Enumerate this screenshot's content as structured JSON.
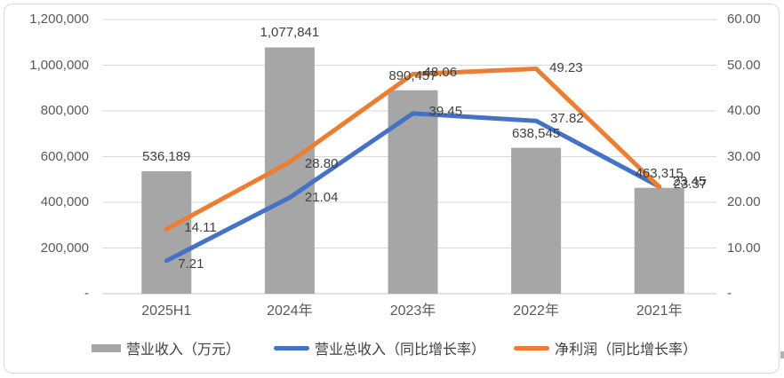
{
  "colors": {
    "bar": "#a6a6a6",
    "blue_line": "#4472c4",
    "orange_line": "#ed7d31",
    "gridline": "#d9d9d9",
    "axis_line": "#c8c8c8",
    "axis_text": "#595959",
    "label_text": "#404040",
    "frame_border": "#d9d9d9"
  },
  "chart_data": {
    "type": "bar",
    "subtype": "combo-bar-line",
    "categories": [
      "2025H1",
      "2024年",
      "2023年",
      "2022年",
      "2021年"
    ],
    "series": [
      {
        "name": "营业收入（万元）",
        "type": "bar",
        "axis": "left",
        "color": "#a6a6a6",
        "values": [
          536189,
          1077841,
          890457,
          638545,
          463315
        ],
        "labels": [
          "536,189",
          "1,077,841",
          "890,457",
          "638,545",
          "463,315"
        ]
      },
      {
        "name": "营业总收入（同比增长率）",
        "type": "line",
        "axis": "right",
        "color": "#4472c4",
        "values": [
          7.21,
          21.04,
          39.45,
          37.82,
          23.45
        ],
        "labels": [
          "7.21",
          "21.04",
          "39.45",
          "37.82",
          "23.45"
        ]
      },
      {
        "name": "净利润（同比增长率）",
        "type": "line",
        "axis": "right",
        "color": "#ed7d31",
        "values": [
          14.11,
          28.8,
          48.06,
          49.23,
          23.37
        ],
        "labels": [
          "14.11",
          "28.80",
          "48.06",
          "49.23",
          "23.37"
        ]
      }
    ],
    "left_axis": {
      "min": 0,
      "max": 1200000,
      "step": 200000,
      "ticks": [
        "1,200,000",
        "1,000,000",
        "800,000",
        "600,000",
        "400,000",
        "200,000",
        "-"
      ]
    },
    "right_axis": {
      "min": 0,
      "max": 60,
      "step": 10,
      "ticks": [
        "60.00",
        "50.00",
        "40.00",
        "30.00",
        "20.00",
        "10.00",
        "-"
      ]
    },
    "grid": true,
    "legend_position": "bottom",
    "legend": [
      "营业收入（万元）",
      "营业总收入（同比增长率）",
      "净利润（同比增长率）"
    ]
  }
}
